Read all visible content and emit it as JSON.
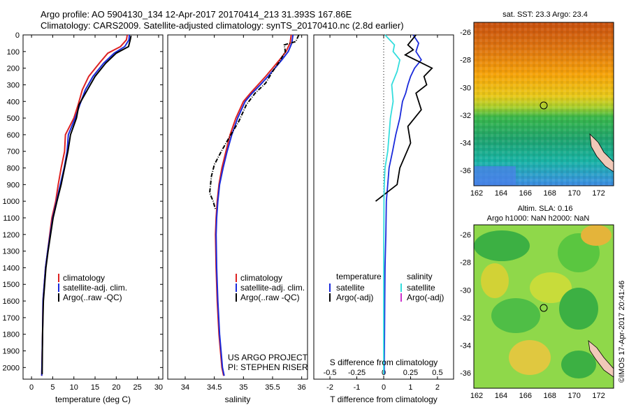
{
  "header": {
    "line1": "Argo profile: AO 5904130_134 12-Apr-2017 20170414_213 31.393S 167.86E",
    "line2": "Climatology: CARS2009. Satellite-adjusted climatology: synTS_20170410.nc (2.8d earlier)"
  },
  "chart_data": [
    {
      "type": "line",
      "xlabel": "temperature (deg C)",
      "ylabel": "",
      "xlim": [
        -2,
        31
      ],
      "ylim": [
        2070,
        0
      ],
      "xticks": [
        "0",
        "5",
        "10",
        "15",
        "20",
        "25",
        "30"
      ],
      "yticks": [
        "0",
        "100",
        "200",
        "300",
        "400",
        "500",
        "600",
        "700",
        "800",
        "900",
        "1000",
        "1100",
        "1200",
        "1300",
        "1400",
        "1500",
        "1600",
        "1700",
        "1800",
        "1900",
        "2000"
      ],
      "colors": {
        "climatology": "#dd2222",
        "satellite": "#1a2adb",
        "argo": "#000000"
      },
      "legend": [
        "climatology",
        "satellite-adj. clim.",
        "Argo(..raw -QC)"
      ],
      "series": [
        {
          "name": "climatology",
          "x": [
            22.6,
            22.4,
            21,
            18,
            16,
            13.5,
            12,
            11,
            10,
            8,
            7.8,
            7,
            6.3,
            5.7,
            4.8,
            4.3,
            3.8,
            3.3,
            3,
            2.7,
            2.6,
            2.4
          ],
          "y": [
            0,
            30,
            70,
            110,
            170,
            250,
            330,
            420,
            500,
            600,
            700,
            800,
            900,
            1000,
            1100,
            1200,
            1300,
            1400,
            1500,
            1600,
            1800,
            2050
          ]
        },
        {
          "name": "satellite-adj. clim.",
          "x": [
            23.1,
            23,
            22,
            19.5,
            17,
            14.5,
            12.7,
            11.4,
            10.3,
            8.7,
            8.4,
            7.7,
            6.8,
            5.9,
            5,
            4.4,
            3.8,
            3.3,
            3,
            2.7,
            2.6,
            2.4
          ],
          "y": [
            0,
            30,
            70,
            110,
            170,
            250,
            330,
            420,
            500,
            600,
            700,
            800,
            900,
            1000,
            1100,
            1200,
            1300,
            1400,
            1500,
            1600,
            1800,
            2050
          ]
        },
        {
          "name": "Argo(..raw -QC)",
          "x": [
            23.5,
            23.3,
            22.9,
            20,
            17.5,
            15,
            13.2,
            11.2,
            10.6,
            9.2,
            8.6,
            7.8,
            7,
            6,
            5.1,
            4.5,
            3.9,
            3.4,
            3.1,
            2.8,
            2.6,
            2.5
          ],
          "y": [
            5,
            30,
            70,
            110,
            170,
            250,
            330,
            420,
            500,
            600,
            700,
            800,
            900,
            1000,
            1100,
            1200,
            1300,
            1400,
            1500,
            1600,
            1800,
            2040
          ]
        }
      ]
    },
    {
      "type": "line",
      "xlabel": "salinity",
      "ylabel": "",
      "xlim": [
        33.7,
        36.1
      ],
      "ylim": [
        2070,
        0
      ],
      "xticks": [
        "34",
        "34.5",
        "35",
        "35.5",
        "36"
      ],
      "colors": {
        "climatology": "#dd2222",
        "satellite": "#1a2adb",
        "argo": "#000000"
      },
      "legend": [
        "climatology",
        "satellite-adj. clim.",
        "Argo(..raw -QC)"
      ],
      "series": [
        {
          "name": "climatology",
          "x": [
            35.82,
            35.8,
            35.73,
            35.62,
            35.5,
            35.38,
            35.25,
            35.12,
            35.0,
            34.87,
            34.77,
            34.7,
            34.63,
            34.58,
            34.55,
            34.53,
            34.52,
            34.53,
            34.55,
            34.58,
            34.63,
            34.66
          ],
          "y": [
            0,
            50,
            100,
            150,
            200,
            250,
            300,
            350,
            400,
            500,
            600,
            700,
            800,
            900,
            1000,
            1100,
            1200,
            1400,
            1600,
            1800,
            2000,
            2050
          ]
        },
        {
          "name": "satellite-adj. clim.",
          "x": [
            35.85,
            35.83,
            35.77,
            35.66,
            35.54,
            35.42,
            35.29,
            35.15,
            35.03,
            34.9,
            34.8,
            34.72,
            34.65,
            34.59,
            34.56,
            34.54,
            34.53,
            34.54,
            34.56,
            34.59,
            34.64,
            34.67
          ],
          "y": [
            0,
            50,
            100,
            150,
            200,
            250,
            300,
            350,
            400,
            500,
            600,
            700,
            800,
            900,
            1000,
            1100,
            1200,
            1400,
            1600,
            1800,
            2000,
            2050
          ]
        },
        {
          "name": "Argo(..raw -QC)",
          "x": [
            35.95,
            35.9,
            35.7,
            35.72,
            35.62,
            35.5,
            35.38,
            35.2,
            35.05,
            34.92,
            34.75,
            34.62,
            34.5,
            34.45,
            34.42,
            34.48,
            34.52
          ],
          "y": [
            0,
            40,
            60,
            100,
            160,
            220,
            290,
            350,
            420,
            520,
            620,
            700,
            780,
            850,
            950,
            1000,
            1050
          ]
        }
      ],
      "annotations": [
        "US ARGO PROJECT",
        "PI: STEPHEN RISER"
      ]
    },
    {
      "type": "line",
      "xlabel": "T difference from climatology",
      "top_label": "S difference from climatology",
      "xlim": [
        -2.6,
        2.6
      ],
      "ylim": [
        2070,
        0
      ],
      "xticks": [
        "-2",
        "-1",
        "0",
        "1",
        "2"
      ],
      "top_ticks": [
        "-0.5",
        "-0.25",
        "0",
        "0.25",
        "0.5"
      ],
      "colors": {
        "temp_satellite": "#1a2adb",
        "temp_argo": "#000000",
        "sal_satellite": "#33dddd",
        "sal_argo": "#cc33cc"
      },
      "legend": {
        "temperature_title": "temperature",
        "salinity_title": "salinity",
        "temp_items": [
          "satellite",
          "Argo(-adj)"
        ],
        "sal_items": [
          "satellite",
          "Argo(-adj)"
        ]
      },
      "series": [
        {
          "name": "T satellite",
          "x": [
            1.1,
            1.3,
            1.2,
            1.4,
            1.15,
            1.0,
            0.9,
            0.82,
            0.7,
            0.6,
            0.45,
            0.33,
            0.2,
            0.15,
            0.1,
            0.08,
            0.05,
            0.04,
            0.03,
            0.02,
            0.02
          ],
          "y": [
            0,
            50,
            100,
            150,
            200,
            250,
            300,
            350,
            400,
            500,
            600,
            700,
            800,
            900,
            1000,
            1200,
            1400,
            1600,
            1800,
            2000,
            2040
          ]
        },
        {
          "name": "T Argo(-adj)",
          "x": [
            1.2,
            0.9,
            1.1,
            0.8,
            1.3,
            1.8,
            1.5,
            1.6,
            1.2,
            1.4,
            0.9,
            1.0,
            0.6,
            0.5,
            -0.3
          ],
          "y": [
            0,
            60,
            90,
            120,
            160,
            200,
            250,
            300,
            350,
            450,
            550,
            650,
            800,
            900,
            1000
          ]
        },
        {
          "name": "S satellite",
          "x": [
            0.05,
            0.4,
            0.35,
            0.6,
            0.5,
            0.3,
            0.35,
            0.25,
            0.2,
            0.15,
            0.05,
            0.02,
            0.01,
            0,
            0,
            0
          ],
          "y": [
            0,
            60,
            100,
            150,
            220,
            300,
            400,
            500,
            600,
            700,
            800,
            900,
            1000,
            1400,
            1800,
            2040
          ]
        }
      ]
    }
  ],
  "maps": {
    "sst": {
      "title": "sat. SST: 23.3 Argo: 23.4",
      "xticks": [
        "162",
        "164",
        "166",
        "168",
        "170",
        "172"
      ],
      "yticks": [
        "-26",
        "-28",
        "-30",
        "-32",
        "-34",
        "-36"
      ]
    },
    "sla": {
      "title1": "Altim. SLA: 0.16",
      "title2": "Argo h1000: NaN h2000: NaN",
      "xticks": [
        "162",
        "164",
        "166",
        "168",
        "170",
        "172"
      ],
      "yticks": [
        "-26",
        "-28",
        "-30",
        "-32",
        "-34",
        "-36"
      ]
    }
  },
  "footer": {
    "credit": "©IMOS 17-Apr-2017 20:41:46"
  }
}
